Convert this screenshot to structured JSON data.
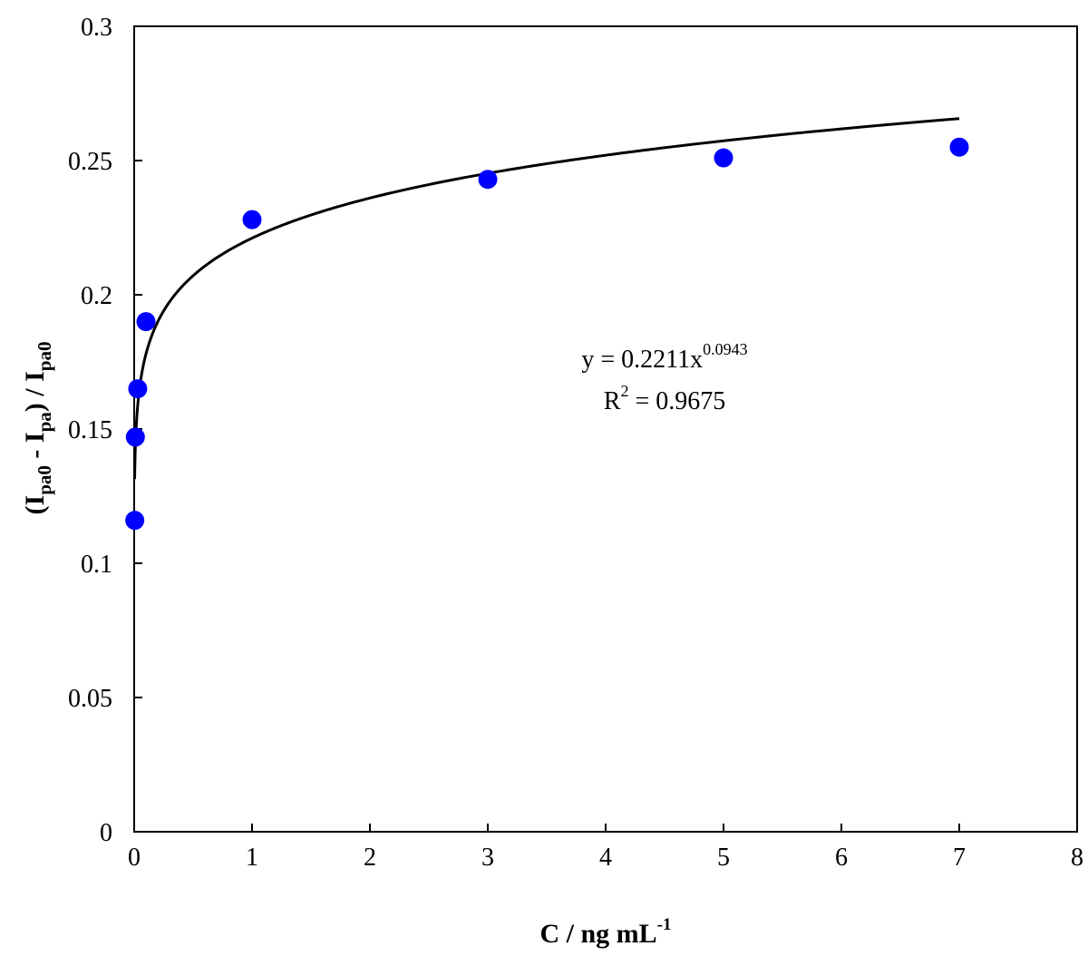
{
  "chart_data": {
    "type": "scatter",
    "x": [
      0.005,
      0.01,
      0.03,
      0.1,
      1,
      3,
      5,
      7
    ],
    "y": [
      0.116,
      0.147,
      0.165,
      0.19,
      0.228,
      0.243,
      0.251,
      0.255
    ],
    "point_color": "#0000ff",
    "xlim": [
      0,
      8
    ],
    "ylim": [
      0,
      0.3
    ],
    "x_ticks": [
      "0",
      "1",
      "2",
      "3",
      "4",
      "5",
      "6",
      "7",
      "8"
    ],
    "y_ticks": [
      "0",
      "0.05",
      "0.1",
      "0.15",
      "0.2",
      "0.25",
      "0.3"
    ],
    "xlabel": {
      "main": "C / ng mL",
      "sup": "-1"
    },
    "ylabel": {
      "p1": "(I",
      "s1": "pa0",
      "p2": " - I",
      "s2": "pa",
      "p3": ") / I",
      "s3": "pa0"
    },
    "trendline": {
      "type": "power",
      "coefficient": 0.2211,
      "exponent": 0.0943,
      "x_range": [
        0.004,
        7
      ],
      "color": "#000000"
    },
    "equation": {
      "line1_main": "y = 0.2211x",
      "line1_sup": "0.0943",
      "line2_pre": "R",
      "line2_sup": "2",
      "line2_post": " = 0.9675"
    }
  }
}
